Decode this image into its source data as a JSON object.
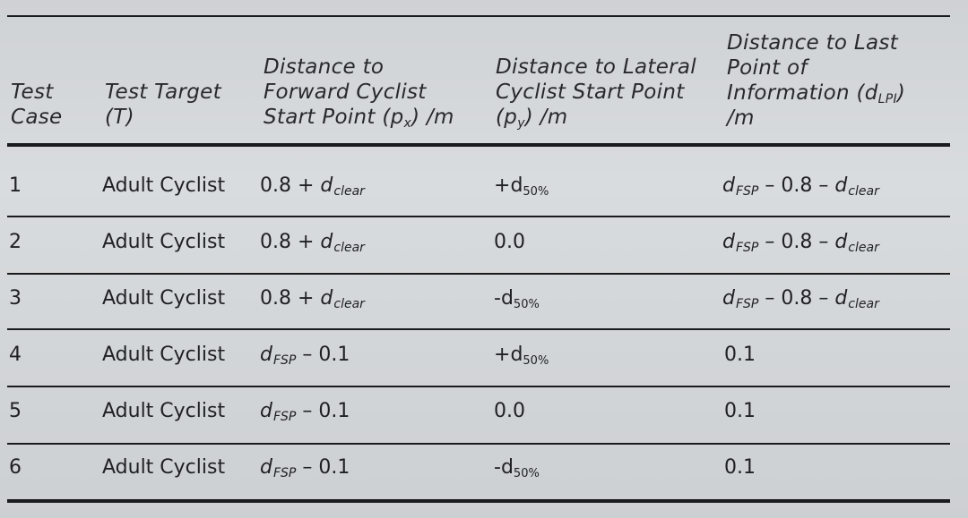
{
  "table": {
    "headers": {
      "test_case": [
        "Test",
        "Case"
      ],
      "test_target": [
        "Test Target",
        "(T)"
      ],
      "forward_dist": [
        "Distance to",
        "Forward Cyclist",
        "Start Point (p",
        "x",
        ") /m"
      ],
      "lateral_dist": [
        "Distance to Lateral",
        "Cyclist Start Point",
        "(p",
        "y",
        ") /m"
      ],
      "last_point": [
        "Distance to Last",
        "Point of",
        "Information (d",
        "LPI",
        ")",
        "/m"
      ]
    },
    "rows": [
      {
        "case": "1",
        "target": "Adult Cyclist",
        "px_prefix": "0.8 + ",
        "px_sym": "d",
        "px_sub": "clear",
        "px_suffix": "",
        "py_sign": "+",
        "py_sym": "d",
        "py_sub": "50%",
        "py_plain": "",
        "lpi_sym": "d",
        "lpi_sub": "FSP",
        "lpi_mid": " – 0.8 – ",
        "lpi_sym2": "d",
        "lpi_sub2": "clear",
        "lpi_plain": ""
      },
      {
        "case": "2",
        "target": "Adult Cyclist",
        "px_prefix": "0.8 + ",
        "px_sym": "d",
        "px_sub": "clear",
        "px_suffix": "",
        "py_sign": "",
        "py_sym": "",
        "py_sub": "",
        "py_plain": "0.0",
        "lpi_sym": "d",
        "lpi_sub": "FSP",
        "lpi_mid": " – 0.8 – ",
        "lpi_sym2": "d",
        "lpi_sub2": "clear",
        "lpi_plain": ""
      },
      {
        "case": "3",
        "target": "Adult Cyclist",
        "px_prefix": "0.8 + ",
        "px_sym": "d",
        "px_sub": "clear",
        "px_suffix": "",
        "py_sign": "-",
        "py_sym": "d",
        "py_sub": "50%",
        "py_plain": "",
        "lpi_sym": "d",
        "lpi_sub": "FSP",
        "lpi_mid": " – 0.8 – ",
        "lpi_sym2": "d",
        "lpi_sub2": "clear",
        "lpi_plain": ""
      },
      {
        "case": "4",
        "target": "Adult Cyclist",
        "px_prefix": "",
        "px_sym": "d",
        "px_sub": "FSP",
        "px_suffix": " – 0.1",
        "py_sign": "+",
        "py_sym": "d",
        "py_sub": "50%",
        "py_plain": "",
        "lpi_sym": "",
        "lpi_sub": "",
        "lpi_mid": "",
        "lpi_sym2": "",
        "lpi_sub2": "",
        "lpi_plain": "0.1"
      },
      {
        "case": "5",
        "target": "Adult Cyclist",
        "px_prefix": "",
        "px_sym": "d",
        "px_sub": "FSP",
        "px_suffix": " – 0.1",
        "py_sign": "",
        "py_sym": "",
        "py_sub": "",
        "py_plain": "0.0",
        "lpi_sym": "",
        "lpi_sub": "",
        "lpi_mid": "",
        "lpi_sym2": "",
        "lpi_sub2": "",
        "lpi_plain": "0.1"
      },
      {
        "case": "6",
        "target": "Adult Cyclist",
        "px_prefix": "",
        "px_sym": "d",
        "px_sub": "FSP",
        "px_suffix": " – 0.1",
        "py_sign": "-",
        "py_sym": "d",
        "py_sub": "50%",
        "py_plain": "",
        "lpi_sym": "",
        "lpi_sub": "",
        "lpi_mid": "",
        "lpi_sym2": "",
        "lpi_sub2": "",
        "lpi_plain": "0.1"
      }
    ]
  }
}
